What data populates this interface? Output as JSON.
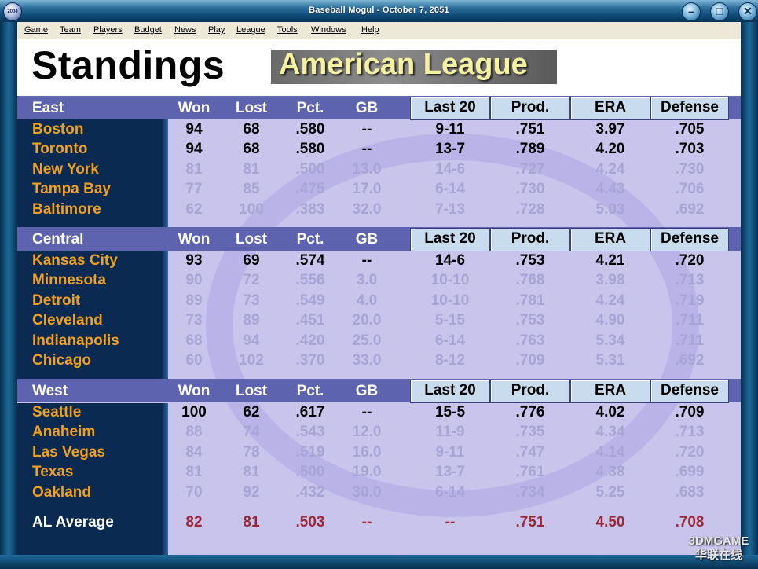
{
  "window": {
    "title": "Baseball Mogul - October 7, 2051",
    "app_icon_label": "2004",
    "buttons": {
      "minimize": "–",
      "maximize": "□",
      "close": "✕"
    }
  },
  "menu": [
    "Game",
    "Team",
    "Players",
    "Budget",
    "News",
    "Play",
    "League",
    "Tools",
    "Windows",
    "Help"
  ],
  "page": {
    "title": "Standings",
    "league": "American League"
  },
  "columns": {
    "won": "Won",
    "lost": "Lost",
    "pct": "Pct.",
    "gb": "GB",
    "last20": "Last 20",
    "prod": "Prod.",
    "era": "ERA",
    "defense": "Defense"
  },
  "divisions": [
    {
      "name": "East",
      "teams": [
        {
          "team": "Boston",
          "won": "94",
          "lost": "68",
          "pct": ".580",
          "gb": "--",
          "last20": "9-11",
          "prod": ".751",
          "era": "3.97",
          "defense": ".705",
          "lead": true
        },
        {
          "team": "Toronto",
          "won": "94",
          "lost": "68",
          "pct": ".580",
          "gb": "--",
          "last20": "13-7",
          "prod": ".789",
          "era": "4.20",
          "defense": ".703",
          "lead": true
        },
        {
          "team": "New York",
          "won": "81",
          "lost": "81",
          "pct": ".500",
          "gb": "13.0",
          "last20": "14-6",
          "prod": ".727",
          "era": "4.24",
          "defense": ".730",
          "lead": false
        },
        {
          "team": "Tampa Bay",
          "won": "77",
          "lost": "85",
          "pct": ".475",
          "gb": "17.0",
          "last20": "6-14",
          "prod": ".730",
          "era": "4.43",
          "defense": ".706",
          "lead": false
        },
        {
          "team": "Baltimore",
          "won": "62",
          "lost": "100",
          "pct": ".383",
          "gb": "32.0",
          "last20": "7-13",
          "prod": ".728",
          "era": "5.03",
          "defense": ".692",
          "lead": false
        }
      ]
    },
    {
      "name": "Central",
      "teams": [
        {
          "team": "Kansas City",
          "won": "93",
          "lost": "69",
          "pct": ".574",
          "gb": "--",
          "last20": "14-6",
          "prod": ".753",
          "era": "4.21",
          "defense": ".720",
          "lead": true
        },
        {
          "team": "Minnesota",
          "won": "90",
          "lost": "72",
          "pct": ".556",
          "gb": "3.0",
          "last20": "10-10",
          "prod": ".768",
          "era": "3.98",
          "defense": ".713",
          "lead": false
        },
        {
          "team": "Detroit",
          "won": "89",
          "lost": "73",
          "pct": ".549",
          "gb": "4.0",
          "last20": "10-10",
          "prod": ".781",
          "era": "4.24",
          "defense": ".719",
          "lead": false
        },
        {
          "team": "Cleveland",
          "won": "73",
          "lost": "89",
          "pct": ".451",
          "gb": "20.0",
          "last20": "5-15",
          "prod": ".753",
          "era": "4.90",
          "defense": ".711",
          "lead": false
        },
        {
          "team": "Indianapolis",
          "won": "68",
          "lost": "94",
          "pct": ".420",
          "gb": "25.0",
          "last20": "6-14",
          "prod": ".763",
          "era": "5.34",
          "defense": ".711",
          "lead": false
        },
        {
          "team": "Chicago",
          "won": "60",
          "lost": "102",
          "pct": ".370",
          "gb": "33.0",
          "last20": "8-12",
          "prod": ".709",
          "era": "5.31",
          "defense": ".692",
          "lead": false
        }
      ]
    },
    {
      "name": "West",
      "teams": [
        {
          "team": "Seattle",
          "won": "100",
          "lost": "62",
          "pct": ".617",
          "gb": "--",
          "last20": "15-5",
          "prod": ".776",
          "era": "4.02",
          "defense": ".709",
          "lead": true
        },
        {
          "team": "Anaheim",
          "won": "88",
          "lost": "74",
          "pct": ".543",
          "gb": "12.0",
          "last20": "11-9",
          "prod": ".735",
          "era": "4.34",
          "defense": ".713",
          "lead": false
        },
        {
          "team": "Las Vegas",
          "won": "84",
          "lost": "78",
          "pct": ".519",
          "gb": "16.0",
          "last20": "9-11",
          "prod": ".747",
          "era": "4.14",
          "defense": ".720",
          "lead": false
        },
        {
          "team": "Texas",
          "won": "81",
          "lost": "81",
          "pct": ".500",
          "gb": "19.0",
          "last20": "13-7",
          "prod": ".761",
          "era": "4.38",
          "defense": ".699",
          "lead": false
        },
        {
          "team": "Oakland",
          "won": "70",
          "lost": "92",
          "pct": ".432",
          "gb": "30.0",
          "last20": "6-14",
          "prod": ".734",
          "era": "5.25",
          "defense": ".683",
          "lead": false
        }
      ]
    }
  ],
  "average": {
    "team": "AL Average",
    "won": "82",
    "lost": "81",
    "pct": ".503",
    "gb": "--",
    "last20": "--",
    "prod": ".751",
    "era": "4.50",
    "defense": ".708"
  },
  "watermark": {
    "line1": "3DMGAME",
    "line2": "华联在线"
  },
  "colors": {
    "team_name": "#f0a020",
    "leader_text": "#000000",
    "other_text": "#a8a4d4",
    "average_text": "#9a2838",
    "header_band": "#5e63b0",
    "sidebar": "#0a2a52",
    "panel": "#c8c4ec"
  }
}
